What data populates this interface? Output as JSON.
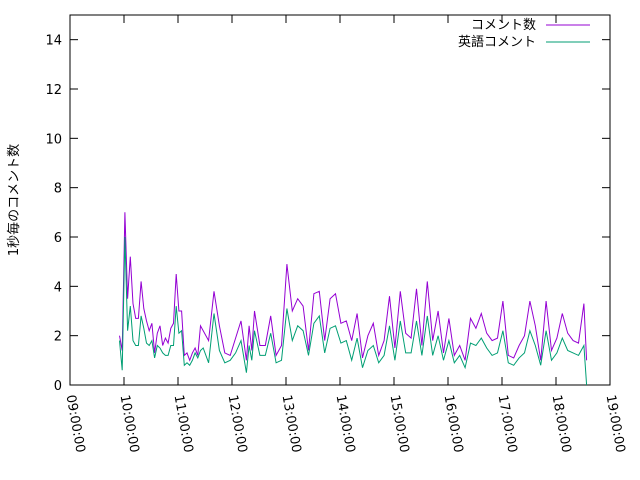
{
  "chart_data": {
    "type": "line",
    "ylabel": "1秒毎のコメント数",
    "xlabel": "",
    "title": "",
    "ylim": [
      0,
      15
    ],
    "yticks": [
      0,
      2,
      4,
      6,
      8,
      10,
      12,
      14
    ],
    "xlim": [
      "09:00:00",
      "19:00:00"
    ],
    "xticks": [
      "09:00:00",
      "10:00:00",
      "11:00:00",
      "12:00:00",
      "13:00:00",
      "14:00:00",
      "15:00:00",
      "16:00:00",
      "17:00:00",
      "18:00:00",
      "19:00:00"
    ],
    "grid": false,
    "legend_position": "top-right",
    "series": [
      {
        "name": "コメント数",
        "color": "#9400d3",
        "x": [
          "09:55:00",
          "09:58:00",
          "10:01:00",
          "10:04:00",
          "10:07:00",
          "10:10:00",
          "10:13:00",
          "10:16:00",
          "10:19:00",
          "10:22:00",
          "10:25:00",
          "10:28:00",
          "10:31:00",
          "10:34:00",
          "10:37:00",
          "10:40:00",
          "10:43:00",
          "10:46:00",
          "10:49:00",
          "10:52:00",
          "10:55:00",
          "10:58:00",
          "11:01:00",
          "11:04:00",
          "11:07:00",
          "11:10:00",
          "11:13:00",
          "11:16:00",
          "11:19:00",
          "11:22:00",
          "11:25:00",
          "11:28:00",
          "11:34:00",
          "11:40:00",
          "11:46:00",
          "11:52:00",
          "11:58:00",
          "12:04:00",
          "12:10:00",
          "12:16:00",
          "12:19:00",
          "12:22:00",
          "12:25:00",
          "12:31:00",
          "12:37:00",
          "12:43:00",
          "12:49:00",
          "12:55:00",
          "13:01:00",
          "13:07:00",
          "13:13:00",
          "13:19:00",
          "13:25:00",
          "13:31:00",
          "13:37:00",
          "13:43:00",
          "13:49:00",
          "13:55:00",
          "14:01:00",
          "14:07:00",
          "14:13:00",
          "14:19:00",
          "14:25:00",
          "14:31:00",
          "14:37:00",
          "14:43:00",
          "14:49:00",
          "14:55:00",
          "15:01:00",
          "15:07:00",
          "15:13:00",
          "15:19:00",
          "15:25:00",
          "15:31:00",
          "15:37:00",
          "15:43:00",
          "15:49:00",
          "15:55:00",
          "16:01:00",
          "16:07:00",
          "16:13:00",
          "16:19:00",
          "16:25:00",
          "16:31:00",
          "16:37:00",
          "16:43:00",
          "16:49:00",
          "16:55:00",
          "17:01:00",
          "17:07:00",
          "17:13:00",
          "17:19:00",
          "17:25:00",
          "17:31:00",
          "17:37:00",
          "17:43:00",
          "17:49:00",
          "17:55:00",
          "18:01:00",
          "18:07:00",
          "18:13:00",
          "18:19:00",
          "18:25:00",
          "18:31:00",
          "18:34:00"
        ],
        "values": [
          2.0,
          1.4,
          7.0,
          3.5,
          5.2,
          3.3,
          2.7,
          2.7,
          4.2,
          3.1,
          2.6,
          2.2,
          2.5,
          1.3,
          2.1,
          2.4,
          1.6,
          1.9,
          1.7,
          2.3,
          2.5,
          4.5,
          3.0,
          3.0,
          1.2,
          1.3,
          1.0,
          1.3,
          1.5,
          1.2,
          2.4,
          2.2,
          1.8,
          3.8,
          2.4,
          1.3,
          1.2,
          1.9,
          2.6,
          1.0,
          2.4,
          1.4,
          3.0,
          1.6,
          1.6,
          2.8,
          1.2,
          1.6,
          4.9,
          3.0,
          3.5,
          3.2,
          1.4,
          3.7,
          3.8,
          1.8,
          3.5,
          3.7,
          2.5,
          2.6,
          1.8,
          2.9,
          1.1,
          2.0,
          2.5,
          1.2,
          1.8,
          3.6,
          1.5,
          3.8,
          2.1,
          1.9,
          3.9,
          1.6,
          4.2,
          1.8,
          3.0,
          1.3,
          2.7,
          1.2,
          1.6,
          1.0,
          2.7,
          2.3,
          2.9,
          2.1,
          1.8,
          1.9,
          3.4,
          1.2,
          1.1,
          1.6,
          2.0,
          3.4,
          2.4,
          1.0,
          3.4,
          1.4,
          1.9,
          2.9,
          2.1,
          1.8,
          1.7,
          3.3,
          1.0
        ]
      },
      {
        "name": "英語コメント",
        "color": "#009e73",
        "x": [
          "09:55:00",
          "09:58:00",
          "10:01:00",
          "10:04:00",
          "10:07:00",
          "10:10:00",
          "10:13:00",
          "10:16:00",
          "10:19:00",
          "10:22:00",
          "10:25:00",
          "10:28:00",
          "10:31:00",
          "10:34:00",
          "10:37:00",
          "10:40:00",
          "10:43:00",
          "10:46:00",
          "10:49:00",
          "10:52:00",
          "10:55:00",
          "10:58:00",
          "11:01:00",
          "11:04:00",
          "11:07:00",
          "11:10:00",
          "11:13:00",
          "11:16:00",
          "11:19:00",
          "11:22:00",
          "11:25:00",
          "11:28:00",
          "11:34:00",
          "11:40:00",
          "11:46:00",
          "11:52:00",
          "11:58:00",
          "12:04:00",
          "12:10:00",
          "12:16:00",
          "12:19:00",
          "12:22:00",
          "12:25:00",
          "12:31:00",
          "12:37:00",
          "12:43:00",
          "12:49:00",
          "12:55:00",
          "13:01:00",
          "13:07:00",
          "13:13:00",
          "13:19:00",
          "13:25:00",
          "13:31:00",
          "13:37:00",
          "13:43:00",
          "13:49:00",
          "13:55:00",
          "14:01:00",
          "14:07:00",
          "14:13:00",
          "14:19:00",
          "14:25:00",
          "14:31:00",
          "14:37:00",
          "14:43:00",
          "14:49:00",
          "14:55:00",
          "15:01:00",
          "15:07:00",
          "15:13:00",
          "15:19:00",
          "15:25:00",
          "15:31:00",
          "15:37:00",
          "15:43:00",
          "15:49:00",
          "15:55:00",
          "16:01:00",
          "16:07:00",
          "16:13:00",
          "16:19:00",
          "16:25:00",
          "16:31:00",
          "16:37:00",
          "16:43:00",
          "16:49:00",
          "16:55:00",
          "17:01:00",
          "17:07:00",
          "17:13:00",
          "17:19:00",
          "17:25:00",
          "17:31:00",
          "17:37:00",
          "17:43:00",
          "17:49:00",
          "17:55:00",
          "18:01:00",
          "18:07:00",
          "18:13:00",
          "18:19:00",
          "18:25:00",
          "18:31:00",
          "18:34:00"
        ],
        "values": [
          1.8,
          0.6,
          6.0,
          2.2,
          3.2,
          1.8,
          1.6,
          1.6,
          2.8,
          2.3,
          1.7,
          1.6,
          1.8,
          1.1,
          1.6,
          1.5,
          1.3,
          1.2,
          1.2,
          1.6,
          1.6,
          3.2,
          2.1,
          2.2,
          0.8,
          0.9,
          0.8,
          1.0,
          1.3,
          1.1,
          1.4,
          1.5,
          0.9,
          2.9,
          1.4,
          0.9,
          1.0,
          1.3,
          1.8,
          0.5,
          1.6,
          1.0,
          2.2,
          1.2,
          1.2,
          2.1,
          0.9,
          1.0,
          3.1,
          1.8,
          2.4,
          2.2,
          1.2,
          2.5,
          2.8,
          1.3,
          2.3,
          2.4,
          1.7,
          1.8,
          1.0,
          1.9,
          0.7,
          1.4,
          1.6,
          0.9,
          1.2,
          2.4,
          1.0,
          2.6,
          1.3,
          1.3,
          2.6,
          1.2,
          2.8,
          1.2,
          2.0,
          1.0,
          1.8,
          0.9,
          1.2,
          0.7,
          1.7,
          1.6,
          1.9,
          1.5,
          1.2,
          1.3,
          2.2,
          0.9,
          0.8,
          1.1,
          1.3,
          2.2,
          1.6,
          0.8,
          2.2,
          1.0,
          1.3,
          1.9,
          1.4,
          1.3,
          1.2,
          1.6,
          0.0
        ]
      }
    ]
  }
}
